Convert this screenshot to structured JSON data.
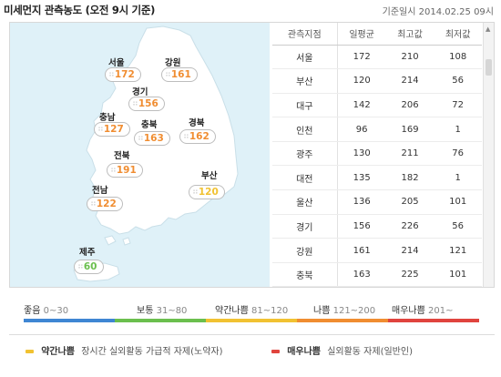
{
  "header": {
    "title": "미세먼지 관측농도 (오전 9시 기준)",
    "ref_time": "기준일시 2014.02.25 09시"
  },
  "colors": {
    "good": "#3f86d3",
    "normal": "#6bbf4e",
    "slightly_bad": "#f1c232",
    "bad": "#f08d31",
    "very_bad": "#e0443e",
    "map_land": "#ffffff",
    "map_sea": "#dff1f8"
  },
  "regions": [
    {
      "name": "서울",
      "value": "172"
    },
    {
      "name": "강원",
      "value": "161"
    },
    {
      "name": "경기",
      "value": "156"
    },
    {
      "name": "충남",
      "value": "127"
    },
    {
      "name": "충북",
      "value": "163"
    },
    {
      "name": "경북",
      "value": "162"
    },
    {
      "name": "전북",
      "value": "191"
    },
    {
      "name": "부산",
      "value": "120"
    },
    {
      "name": "전남",
      "value": "122"
    },
    {
      "name": "제주",
      "value": "60"
    }
  ],
  "table": {
    "headers": [
      "관측지점",
      "일평균",
      "최고값",
      "최저값"
    ],
    "rows": [
      [
        "서울",
        "172",
        "210",
        "108"
      ],
      [
        "부산",
        "120",
        "214",
        "56"
      ],
      [
        "대구",
        "142",
        "206",
        "72"
      ],
      [
        "인천",
        "96",
        "169",
        "1"
      ],
      [
        "광주",
        "130",
        "211",
        "76"
      ],
      [
        "대전",
        "135",
        "182",
        "1"
      ],
      [
        "울산",
        "136",
        "205",
        "101"
      ],
      [
        "경기",
        "156",
        "226",
        "56"
      ],
      [
        "강원",
        "161",
        "214",
        "121"
      ],
      [
        "충북",
        "163",
        "225",
        "101"
      ]
    ]
  },
  "legend": [
    {
      "label": "좋음",
      "range": "0~30",
      "color": "#3f86d3"
    },
    {
      "label": "보통",
      "range": "31~80",
      "color": "#6bbf4e"
    },
    {
      "label": "약간나쁨",
      "range": "81~120",
      "color": "#f1c232"
    },
    {
      "label": "나쁨",
      "range": "121~200",
      "color": "#f08d31"
    },
    {
      "label": "매우나쁨",
      "range": "201~",
      "color": "#e0443e"
    }
  ],
  "notes": [
    {
      "label": "약간나쁨",
      "text": "장시간 실외활동 가급적 자제(노약자)",
      "color": "#f1c232"
    },
    {
      "label": "매우나쁨",
      "text": "실외활동 자제(일반인)",
      "color": "#e0443e"
    }
  ]
}
